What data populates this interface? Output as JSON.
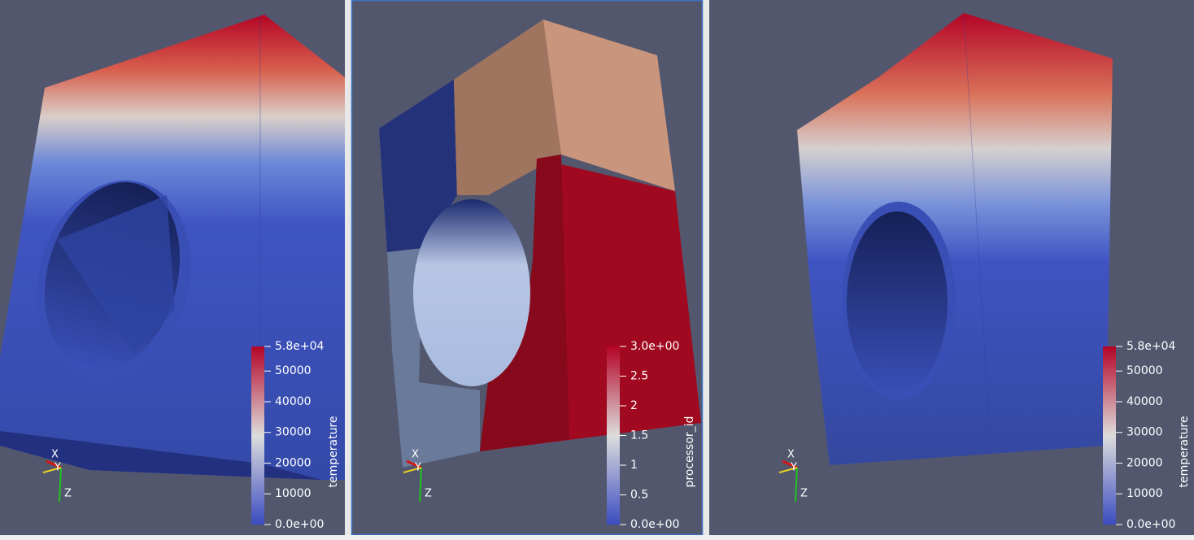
{
  "views": [
    {
      "colorbar": {
        "title": "temperature",
        "range": [
          0,
          58000
        ],
        "ticks": [
          {
            "value": 0,
            "label": "0.0e+00"
          },
          10000,
          20000,
          30000,
          40000,
          50000,
          {
            "value": 58000,
            "label": "5.8e+04"
          }
        ]
      },
      "axes": {
        "x": "X",
        "y": "Y",
        "z": "Z"
      }
    },
    {
      "colorbar": {
        "title": "processor_id",
        "range": [
          0,
          3
        ],
        "ticks": [
          {
            "value": 0,
            "label": "0.0e+00"
          },
          0.5,
          1,
          1.5,
          2,
          2.5,
          {
            "value": 3,
            "label": "3.0e+00"
          }
        ]
      },
      "axes": {
        "x": "X",
        "y": "Y",
        "z": "Z"
      }
    },
    {
      "colorbar": {
        "title": "temperature",
        "range": [
          0,
          58000
        ],
        "ticks": [
          {
            "value": 0,
            "label": "0.0e+00"
          },
          10000,
          20000,
          30000,
          40000,
          50000,
          {
            "value": 58000,
            "label": "5.8e+04"
          }
        ]
      },
      "axes": {
        "x": "X",
        "y": "Y",
        "z": "Z"
      }
    }
  ]
}
